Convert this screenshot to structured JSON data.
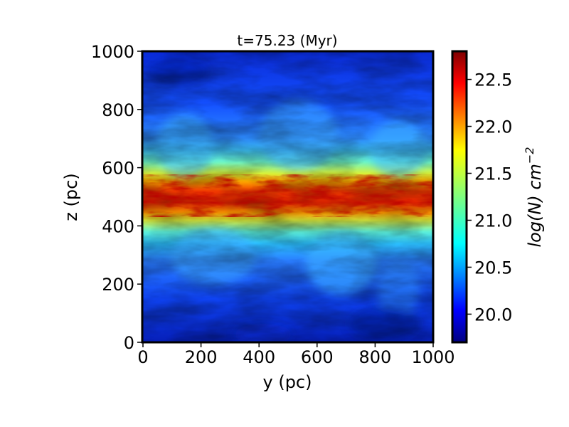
{
  "chart_data": {
    "type": "heatmap",
    "title": "t=75.23 (Myr)",
    "xlabel": "y (pc)",
    "ylabel": "z (pc)",
    "xlim": [
      0,
      1000
    ],
    "ylim": [
      0,
      1000
    ],
    "x_ticks": [
      "0",
      "200",
      "400",
      "600",
      "800",
      "1000"
    ],
    "y_ticks": [
      "0",
      "200",
      "400",
      "600",
      "800",
      "1000"
    ],
    "colorbar": {
      "label": "log(N) cm",
      "label_exponent": "−2",
      "range": [
        19.7,
        22.8
      ],
      "ticks": [
        "20.0",
        "20.5",
        "21.0",
        "21.5",
        "22.0",
        "22.5"
      ],
      "colormap": "jet"
    },
    "description_values": {
      "midplane_z_pc": 500,
      "peak_log_N": 22.8,
      "background_log_N": 19.8
    }
  }
}
